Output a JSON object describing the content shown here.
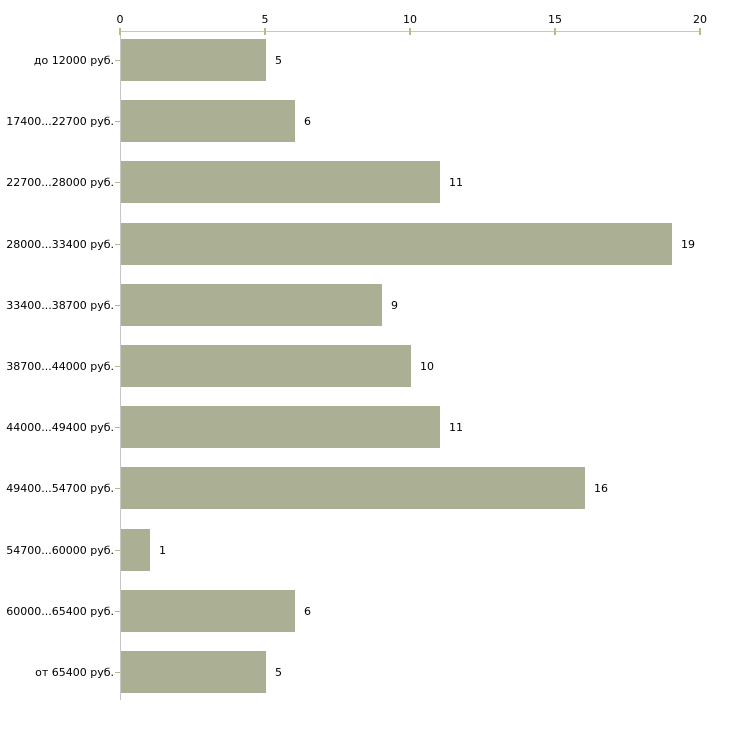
{
  "chart_data": {
    "type": "bar",
    "orientation": "horizontal",
    "title": "",
    "xlabel": "",
    "ylabel": "",
    "categories": [
      "до 12000 руб.",
      "17400...22700 руб.",
      "22700...28000 руб.",
      "28000...33400 руб.",
      "33400...38700 руб.",
      "38700...44000 руб.",
      "44000...49400 руб.",
      "49400...54700 руб.",
      "54700...60000 руб.",
      "60000...65400 руб.",
      "от 65400 руб."
    ],
    "values": [
      5,
      6,
      11,
      19,
      9,
      10,
      11,
      16,
      1,
      6,
      5
    ],
    "xlim": [
      0,
      20
    ],
    "x_ticks": [
      "0",
      "5",
      "10",
      "15",
      "20"
    ],
    "axis_position": "top",
    "grid": false,
    "legend": null,
    "data_labels_position": "right-of-bar",
    "colors": {
      "bar_fill": "#abb095",
      "axis_line": "#c6c6c6",
      "tick_mark": "#b9ba85",
      "label_text": "#000000",
      "background": "#ffffff"
    }
  }
}
